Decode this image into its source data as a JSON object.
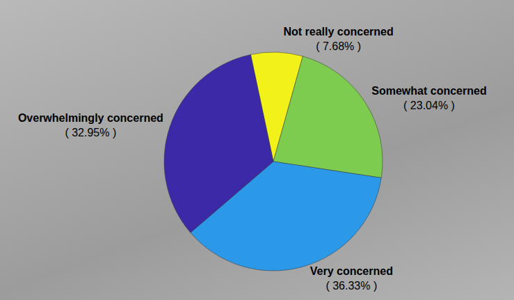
{
  "chart_data": {
    "type": "pie",
    "categories": [
      "Not really concerned",
      "Somewhat concerned",
      "Very concerned",
      "Overwhelmingly concerned"
    ],
    "values": [
      7.68,
      23.04,
      36.33,
      32.95
    ],
    "value_labels": [
      "( 7.68% )",
      "( 23.04% )",
      "( 36.33% )",
      "( 32.95% )"
    ],
    "colors": [
      "#f2f21a",
      "#7dcc50",
      "#2b98e8",
      "#3b29a8"
    ],
    "data_labels": true
  }
}
